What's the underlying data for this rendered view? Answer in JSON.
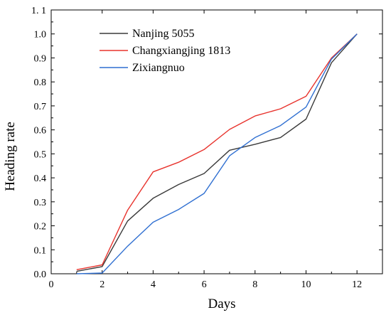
{
  "chart_data": {
    "type": "line",
    "xlabel": "Days",
    "ylabel": "Heading rate",
    "xlim": [
      0,
      13
    ],
    "ylim": [
      0,
      1.1
    ],
    "x_ticks": [
      0,
      2,
      4,
      6,
      8,
      10,
      12
    ],
    "x_tick_labels": [
      "0",
      "2",
      "4",
      "6",
      "8",
      "10",
      "12"
    ],
    "y_ticks": [
      0,
      0.1,
      0.2,
      0.3,
      0.4,
      0.5,
      0.6,
      0.7,
      0.8,
      0.9,
      1.0,
      1.1
    ],
    "y_tick_labels": [
      "0.0",
      "0.1",
      "0.2",
      "0.3",
      "0.4",
      "0.5",
      "0.6",
      "0.7",
      "0.8",
      "0.9",
      "1.0",
      "1. 1"
    ],
    "grid": false,
    "legend_position": "top-left",
    "x": [
      1,
      2,
      3,
      4,
      5,
      6,
      7,
      8,
      9,
      10,
      11,
      12
    ],
    "series": [
      {
        "name": "Nanjing 5055",
        "color": "#3a3a3a",
        "values": [
          0.01,
          0.03,
          0.22,
          0.315,
          0.372,
          0.418,
          0.515,
          0.54,
          0.568,
          0.645,
          0.88,
          1.0
        ]
      },
      {
        "name": "Changxiangjing 1813",
        "color": "#e8332d",
        "values": [
          0.017,
          0.037,
          0.265,
          0.425,
          0.465,
          0.518,
          0.602,
          0.658,
          0.688,
          0.74,
          0.9,
          1.0
        ]
      },
      {
        "name": "Zixiangnuo",
        "color": "#2f6fd1",
        "values": [
          0.0,
          0.003,
          0.115,
          0.215,
          0.268,
          0.335,
          0.492,
          0.568,
          0.618,
          0.695,
          0.895,
          1.0
        ]
      }
    ]
  }
}
